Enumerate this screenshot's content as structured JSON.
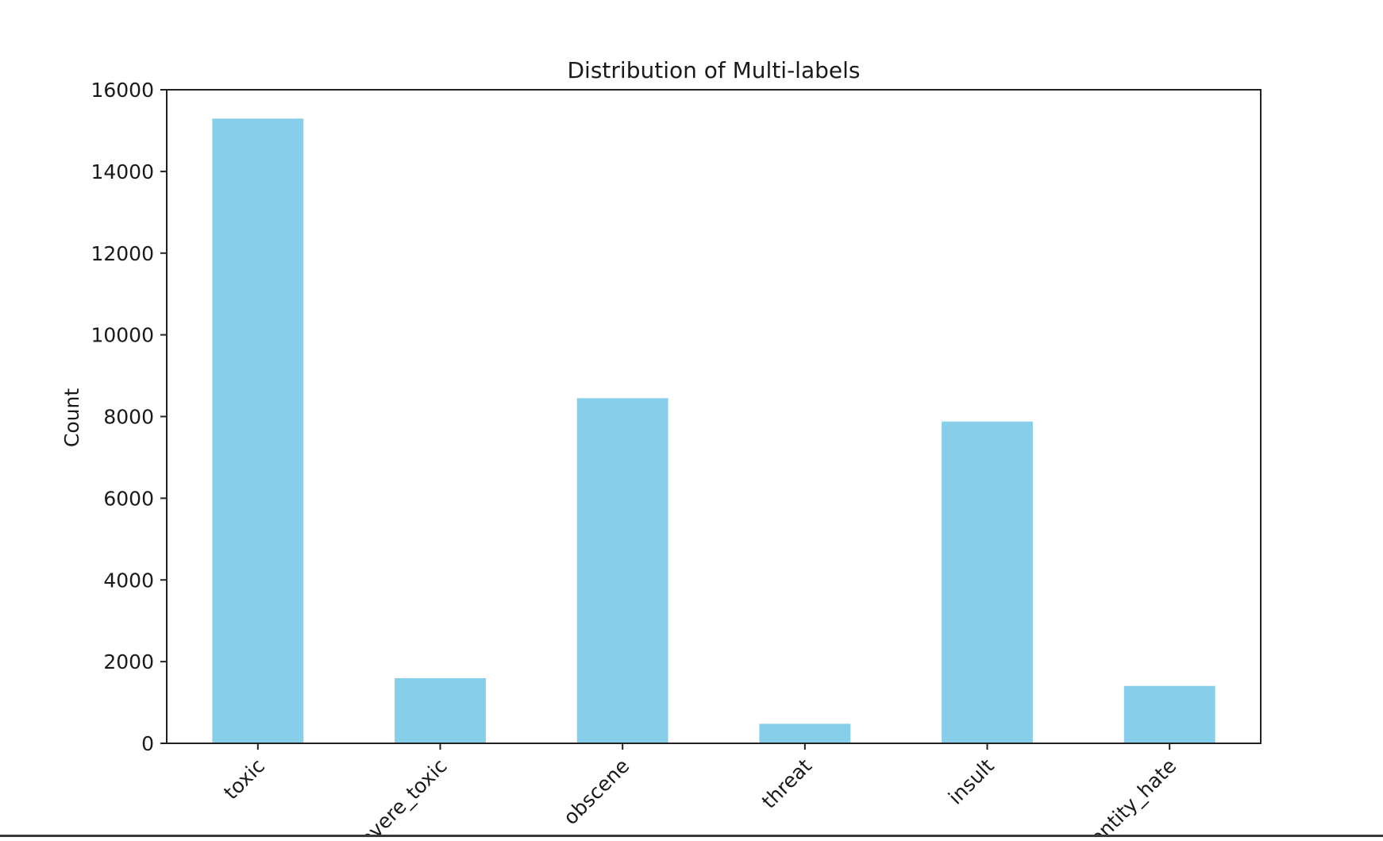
{
  "chart_data": {
    "type": "bar",
    "title": "Distribution of Multi-labels",
    "xlabel": "",
    "ylabel": "Count",
    "categories": [
      "toxic",
      "severe_toxic",
      "obscene",
      "threat",
      "insult",
      "identity_hate"
    ],
    "values": [
      15294,
      1595,
      8449,
      478,
      7877,
      1405
    ],
    "ylim": [
      0,
      16000
    ],
    "yticks": [
      0,
      2000,
      4000,
      6000,
      8000,
      10000,
      12000,
      14000,
      16000
    ],
    "bar_color": "#87ceeb",
    "grid": false,
    "legend": "none"
  }
}
